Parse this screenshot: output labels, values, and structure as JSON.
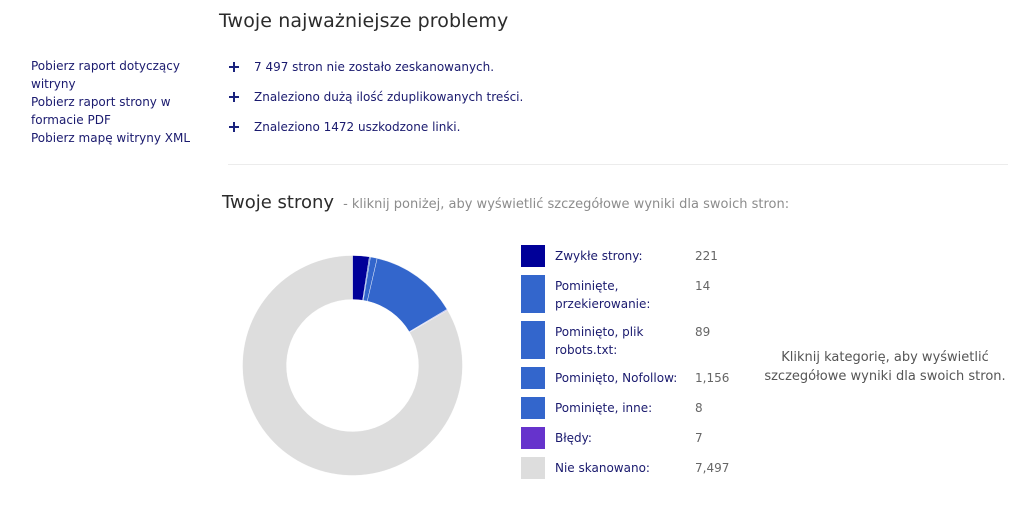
{
  "sidebar": {
    "links": [
      {
        "label": "Pobierz raport dotyczący witryny"
      },
      {
        "label": "Pobierz raport strony w formacie PDF"
      },
      {
        "label": "Pobierz mapę witryny XML"
      }
    ]
  },
  "problems": {
    "title": "Twoje najważniejsze problemy",
    "items": [
      {
        "icon": "plus-icon",
        "text": "7 497 stron nie zostało zeskanowanych."
      },
      {
        "icon": "plus-icon",
        "text": "Znaleziono dużą ilość zduplikowanych treści."
      },
      {
        "icon": "plus-icon",
        "text": "Znaleziono 1472 uszkodzone linki."
      }
    ]
  },
  "pages": {
    "title": "Twoje strony",
    "subtitle": "- kliknij poniżej, aby wyświetlić szczegółowe wyniki dla swoich stron:",
    "hint": "Kliknij kategorię, aby wyświetlić szczegółowe wyniki dla swoich stron."
  },
  "chart_data": {
    "type": "pie",
    "subtype": "donut",
    "title": "Twoje strony",
    "legend_position": "right",
    "start_angle": "top, clockwise",
    "categories": [
      "Zwykłe strony:",
      "Pominięte, przekierowanie:",
      "Pominięto, plik robots.txt:",
      "Pominięto, Nofollow:",
      "Pominięte, inne:",
      "Błędy:",
      "Nie skanowano:"
    ],
    "values": [
      221,
      14,
      89,
      1156,
      8,
      7,
      7497
    ],
    "value_labels": [
      "221",
      "14",
      "89",
      "1,156",
      "8",
      "7",
      "7,497"
    ],
    "colors": [
      "#000099",
      "#3366cc",
      "#3366cc",
      "#3366cc",
      "#3366cc",
      "#6633cc",
      "#dddddd"
    ]
  }
}
